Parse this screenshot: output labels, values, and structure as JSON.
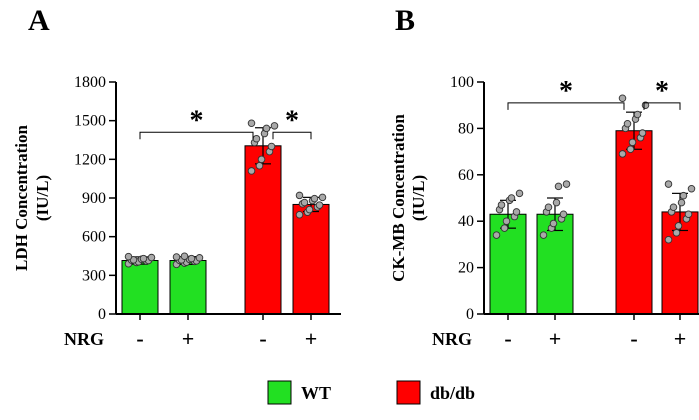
{
  "colors": {
    "WT": "#22e022",
    "db/db": "#ff0000",
    "point": "#a9a9a9",
    "axis": "#000000"
  },
  "legend": [
    {
      "label": "WT",
      "color": "#22e022"
    },
    {
      "label": "db/db",
      "color": "#ff0000"
    }
  ],
  "row_label": "NRG",
  "chart_data": [
    {
      "type": "bar",
      "panel": "A",
      "ylabel_line1": "LDH Concentration",
      "ylabel_line2": "(IU/L)",
      "ylim": [
        0,
        1800
      ],
      "yticks": [
        0,
        300,
        600,
        900,
        1200,
        1500,
        1800
      ],
      "categories": [
        "-",
        "+",
        "-",
        "+"
      ],
      "groups": [
        "WT",
        "WT",
        "db/db",
        "db/db"
      ],
      "values": [
        415,
        415,
        1305,
        850
      ],
      "errors": [
        28,
        30,
        140,
        55
      ],
      "points": [
        [
          390,
          400,
          405,
          410,
          415,
          418,
          420,
          425,
          430,
          438,
          445
        ],
        [
          385,
          395,
          402,
          408,
          412,
          416,
          420,
          424,
          430,
          436,
          442,
          448
        ],
        [
          1110,
          1150,
          1200,
          1260,
          1300,
          1330,
          1360,
          1400,
          1440,
          1460,
          1480
        ],
        [
          770,
          790,
          810,
          830,
          845,
          855,
          865,
          880,
          895,
          905,
          920
        ]
      ],
      "significance": [
        {
          "from": 0,
          "to": 2,
          "label": "*",
          "level": 1410
        },
        {
          "from": 2,
          "to": 3,
          "label": "*",
          "level": 1410
        }
      ]
    },
    {
      "type": "bar",
      "panel": "B",
      "ylabel_line1": "CK-MB Concentration",
      "ylabel_line2": "(IU/L)",
      "ylim": [
        0,
        100
      ],
      "yticks": [
        0,
        20,
        40,
        60,
        80,
        100
      ],
      "categories": [
        "-",
        "+",
        "-",
        "+"
      ],
      "groups": [
        "WT",
        "WT",
        "db/db",
        "db/db"
      ],
      "values": [
        43,
        43,
        79,
        44
      ],
      "errors": [
        6,
        7,
        8,
        8
      ],
      "points": [
        [
          34,
          37,
          40,
          42,
          44,
          45,
          47,
          49,
          50,
          52
        ],
        [
          34,
          37,
          39,
          41,
          43,
          44,
          46,
          48,
          55,
          56
        ],
        [
          69,
          71,
          74,
          76,
          78,
          80,
          82,
          84,
          86,
          90,
          93
        ],
        [
          32,
          35,
          38,
          41,
          43,
          44,
          46,
          48,
          51,
          54,
          56
        ]
      ],
      "significance": [
        {
          "from": 0,
          "to": 2,
          "label": "*",
          "level": 91
        },
        {
          "from": 2,
          "to": 3,
          "label": "*",
          "level": 91
        }
      ]
    }
  ]
}
